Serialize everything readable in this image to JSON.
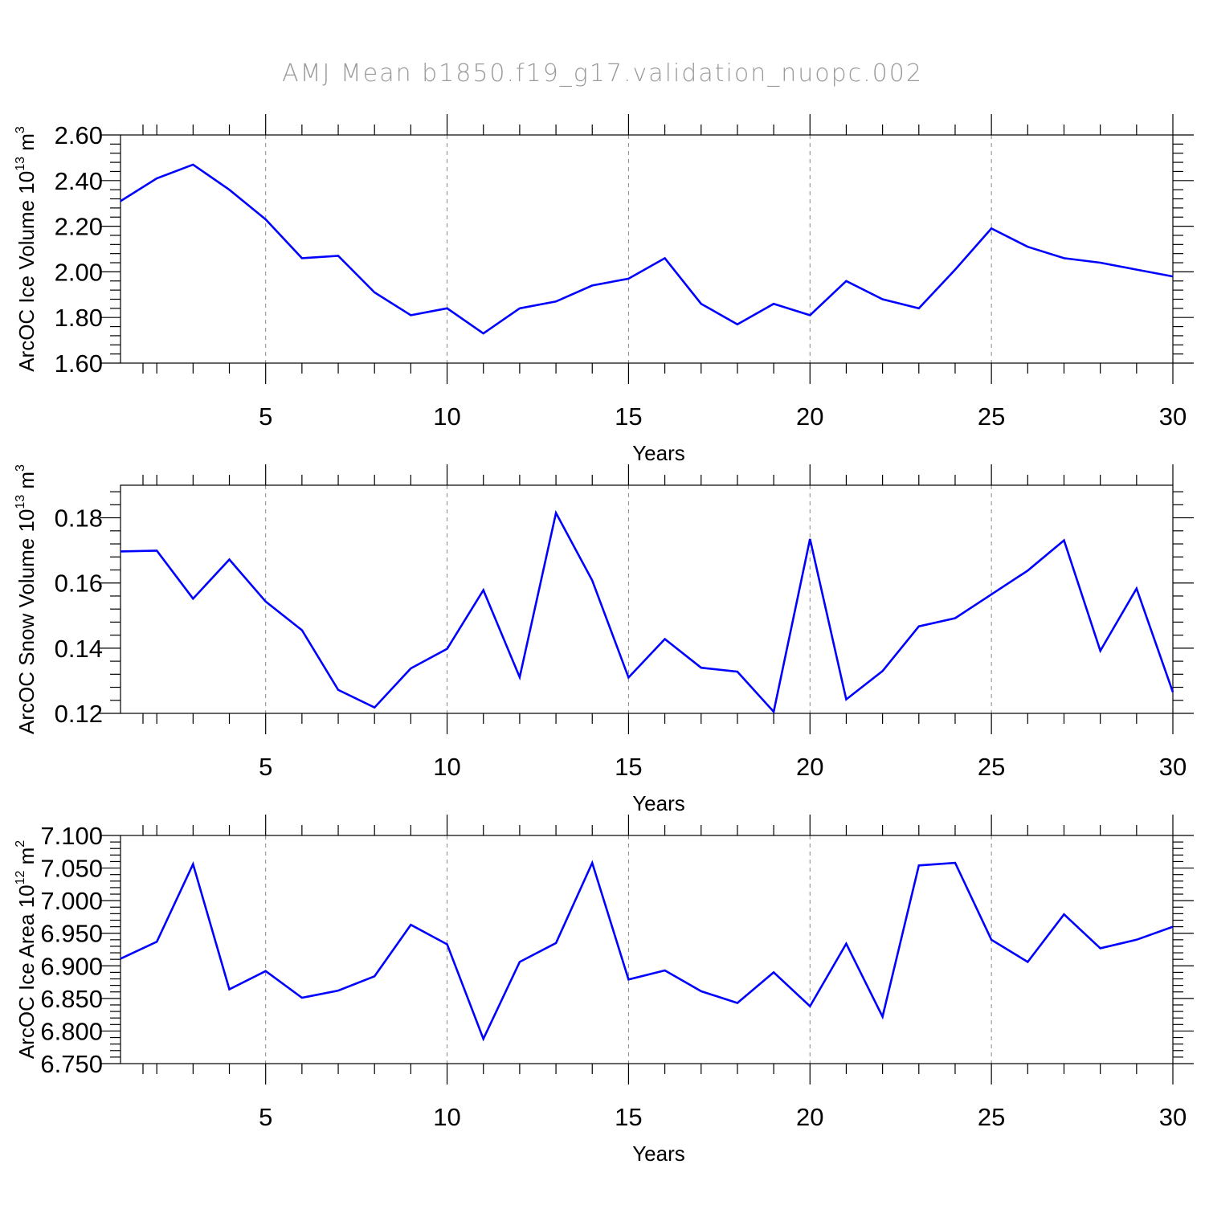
{
  "title": "AMJ Mean b1850.f19_g17.validation_nuopc.002",
  "chart_data": [
    {
      "type": "line",
      "ylabel": {
        "text": "ArcOC Ice Volume 10",
        "sup": "13",
        "unit": " m",
        "unit_sup": "3"
      },
      "xlabel": "Years",
      "xlim": [
        1,
        30
      ],
      "ylim": [
        1.6,
        2.6
      ],
      "yticks": [
        1.6,
        1.8,
        2.0,
        2.2,
        2.4,
        2.6
      ],
      "ytick_labels": [
        "1.60",
        "1.80",
        "2.00",
        "2.20",
        "2.40",
        "2.60"
      ],
      "xticks": [
        5,
        10,
        15,
        20,
        25,
        30
      ],
      "xtick_labels": [
        "5",
        "10",
        "15",
        "20",
        "25",
        "30"
      ],
      "color": "#0000ff",
      "x": [
        1,
        2,
        3,
        4,
        5,
        6,
        7,
        8,
        9,
        10,
        11,
        12,
        13,
        14,
        15,
        16,
        17,
        18,
        19,
        20,
        21,
        22,
        23,
        24,
        25,
        26,
        27,
        28,
        29,
        30
      ],
      "y": [
        2.31,
        2.41,
        2.47,
        2.36,
        2.23,
        2.06,
        2.07,
        1.91,
        1.81,
        1.84,
        1.73,
        1.84,
        1.87,
        1.94,
        1.97,
        2.06,
        1.86,
        1.77,
        1.86,
        1.81,
        1.96,
        1.88,
        1.84,
        2.01,
        2.19,
        2.11,
        2.06,
        2.04,
        2.01,
        1.98
      ]
    },
    {
      "type": "line",
      "ylabel": {
        "text": "ArcOC Snow Volume 10",
        "sup": "13",
        "unit": " m",
        "unit_sup": "3"
      },
      "xlabel": "Years",
      "xlim": [
        1,
        30
      ],
      "ylim": [
        0.12,
        0.19
      ],
      "yticks": [
        0.12,
        0.14,
        0.16,
        0.18
      ],
      "ytick_labels": [
        "0.12",
        "0.14",
        "0.16",
        "0.18"
      ],
      "xticks": [
        5,
        10,
        15,
        20,
        25,
        30
      ],
      "xtick_labels": [
        "5",
        "10",
        "15",
        "20",
        "25",
        "30"
      ],
      "color": "#0000ff",
      "x": [
        1,
        2,
        3,
        4,
        5,
        6,
        7,
        8,
        9,
        10,
        11,
        12,
        13,
        14,
        15,
        16,
        17,
        18,
        19,
        20,
        21,
        22,
        23,
        24,
        25,
        26,
        27,
        28,
        29,
        30
      ],
      "y": [
        0.1697,
        0.1699,
        0.1552,
        0.1672,
        0.1543,
        0.1455,
        0.1272,
        0.1218,
        0.1338,
        0.1398,
        0.1578,
        0.1311,
        0.1815,
        0.1608,
        0.131,
        0.1428,
        0.134,
        0.1328,
        0.1205,
        0.1735,
        0.1243,
        0.133,
        0.1467,
        0.1492,
        0.1565,
        0.1638,
        0.1731,
        0.1392,
        0.1583,
        0.1265
      ]
    },
    {
      "type": "line",
      "ylabel": {
        "text": "ArcOC Ice Area 10",
        "sup": "12",
        "unit": " m",
        "unit_sup": "2"
      },
      "xlabel": "Years",
      "xlim": [
        1,
        30
      ],
      "ylim": [
        6.75,
        7.1
      ],
      "yticks": [
        6.75,
        6.8,
        6.85,
        6.9,
        6.95,
        7.0,
        7.05,
        7.1
      ],
      "ytick_labels": [
        "6.750",
        "6.800",
        "6.850",
        "6.900",
        "6.950",
        "7.000",
        "7.050",
        "7.100"
      ],
      "xticks": [
        5,
        10,
        15,
        20,
        25,
        30
      ],
      "xtick_labels": [
        "5",
        "10",
        "15",
        "20",
        "25",
        "30"
      ],
      "color": "#0000ff",
      "x": [
        1,
        2,
        3,
        4,
        5,
        6,
        7,
        8,
        9,
        10,
        11,
        12,
        13,
        14,
        15,
        16,
        17,
        18,
        19,
        20,
        21,
        22,
        23,
        24,
        25,
        26,
        27,
        28,
        29,
        30
      ],
      "y": [
        6.911,
        6.937,
        7.056,
        6.864,
        6.892,
        6.851,
        6.862,
        6.884,
        6.963,
        6.933,
        6.788,
        6.906,
        6.935,
        7.058,
        6.879,
        6.893,
        6.861,
        6.843,
        6.89,
        6.838,
        6.934,
        6.822,
        7.054,
        7.058,
        6.94,
        6.906,
        6.979,
        6.927,
        6.94,
        6.96
      ]
    }
  ]
}
